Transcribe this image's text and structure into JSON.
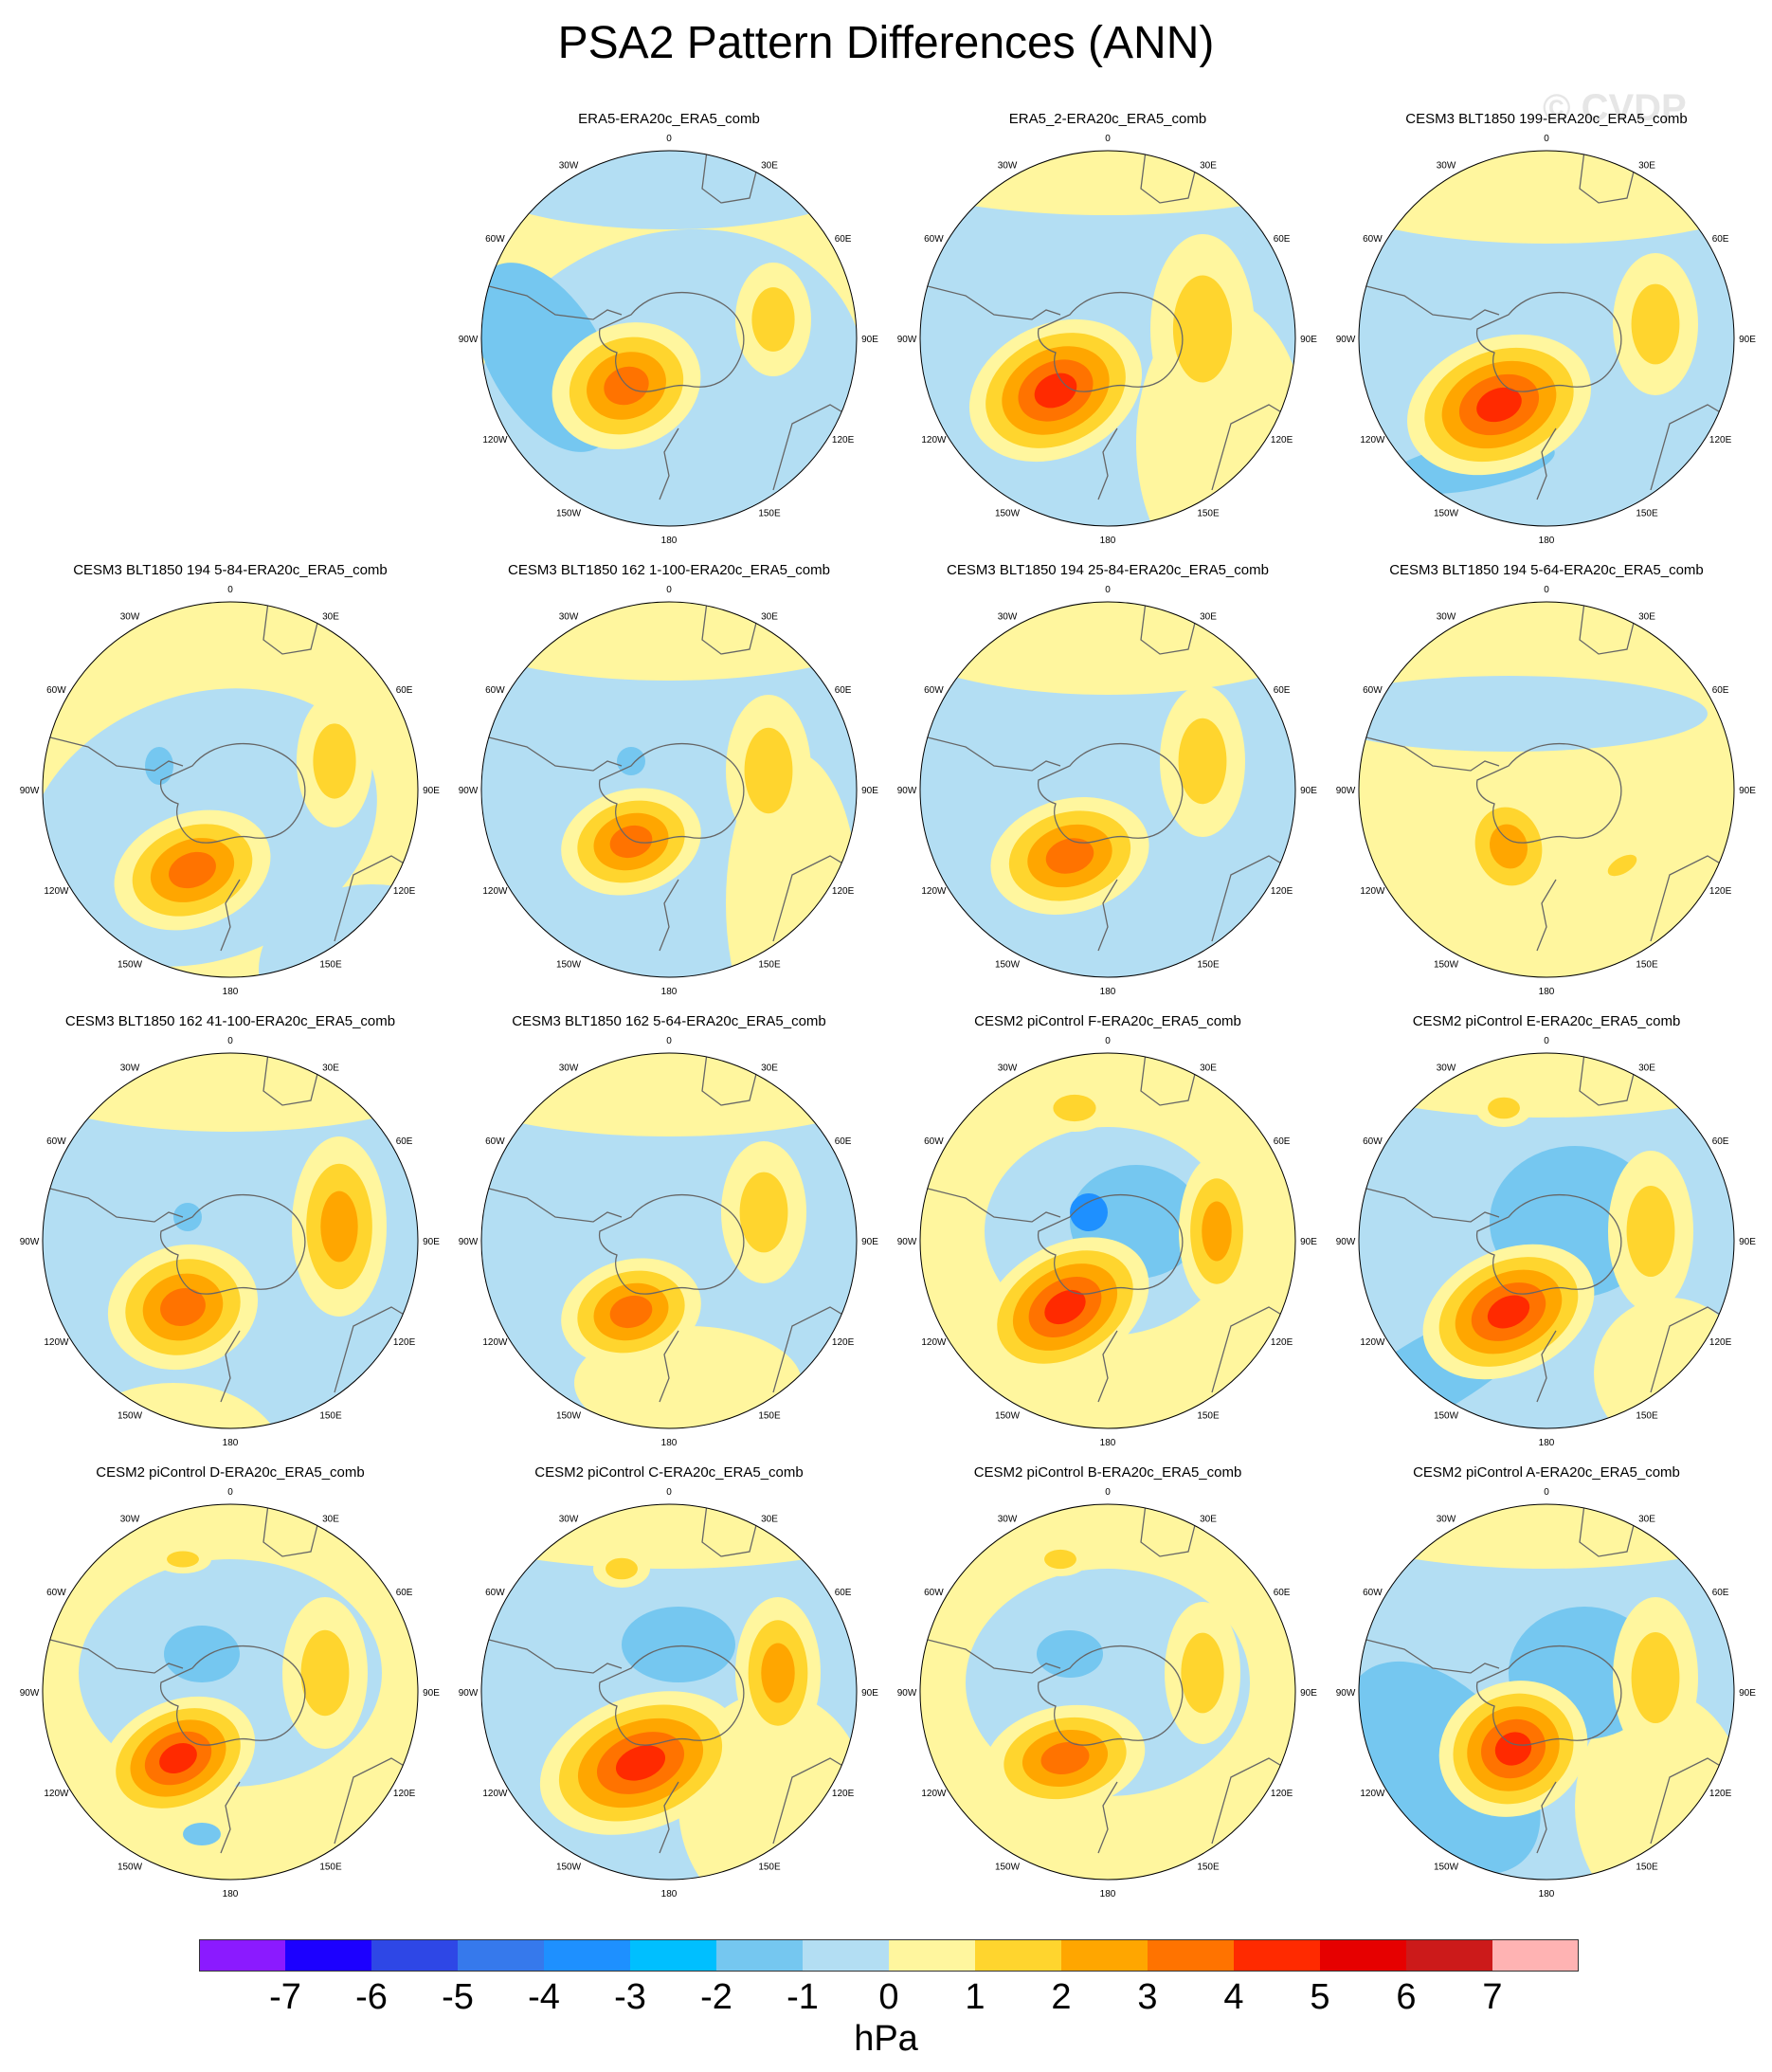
{
  "figure": {
    "title": "PSA2 Pattern Differences (ANN)",
    "watermark": "© CVDP"
  },
  "map_labels": {
    "lon": [
      "0",
      "30E",
      "60E",
      "90E",
      "120E",
      "150E",
      "180",
      "150W",
      "120W",
      "90W",
      "60W",
      "30W"
    ]
  },
  "panels": [
    {
      "title": "ERA5-ERA20c_ERA5_comb",
      "peak": 3
    },
    {
      "title": "ERA5_2-ERA20c_ERA5_comb",
      "peak": 4
    },
    {
      "title": "CESM3 BLT1850 199-ERA20c_ERA5_comb",
      "peak": 4
    },
    {
      "title": "CESM3 BLT1850 194 5-84-ERA20c_ERA5_comb",
      "peak": 3
    },
    {
      "title": "CESM3 BLT1850 162 1-100-ERA20c_ERA5_comb",
      "peak": 3
    },
    {
      "title": "CESM3 BLT1850 194 25-84-ERA20c_ERA5_comb",
      "peak": 3
    },
    {
      "title": "CESM3 BLT1850 194 5-64-ERA20c_ERA5_comb",
      "peak": 2
    },
    {
      "title": "CESM3 BLT1850 162 41-100-ERA20c_ERA5_comb",
      "peak": 3
    },
    {
      "title": "CESM3 BLT1850 162 5-64-ERA20c_ERA5_comb",
      "peak": 3
    },
    {
      "title": "CESM2 piControl F-ERA20c_ERA5_comb",
      "peak": 4
    },
    {
      "title": "CESM2 piControl E-ERA20c_ERA5_comb",
      "peak": 4
    },
    {
      "title": "CESM2 piControl D-ERA20c_ERA5_comb",
      "peak": 4
    },
    {
      "title": "CESM2 piControl C-ERA20c_ERA5_comb",
      "peak": 4
    },
    {
      "title": "CESM2 piControl B-ERA20c_ERA5_comb",
      "peak": 3
    },
    {
      "title": "CESM2 piControl A-ERA20c_ERA5_comb",
      "peak": 4
    }
  ],
  "colorbar": {
    "colors": [
      "#8b1aff",
      "#1c00ff",
      "#2e47e6",
      "#3679ec",
      "#1e90ff",
      "#00bfff",
      "#75c7f0",
      "#b3def3",
      "#fff69e",
      "#ffd52e",
      "#ffa600",
      "#ff7300",
      "#ff2a00",
      "#e60000",
      "#cc1a1a",
      "#ffb3b3"
    ],
    "labels": [
      "-7",
      "-6",
      "-5",
      "-4",
      "-3",
      "-2",
      "-1",
      "0",
      "1",
      "2",
      "3",
      "4",
      "5",
      "6",
      "7"
    ],
    "units": "hPa"
  }
}
